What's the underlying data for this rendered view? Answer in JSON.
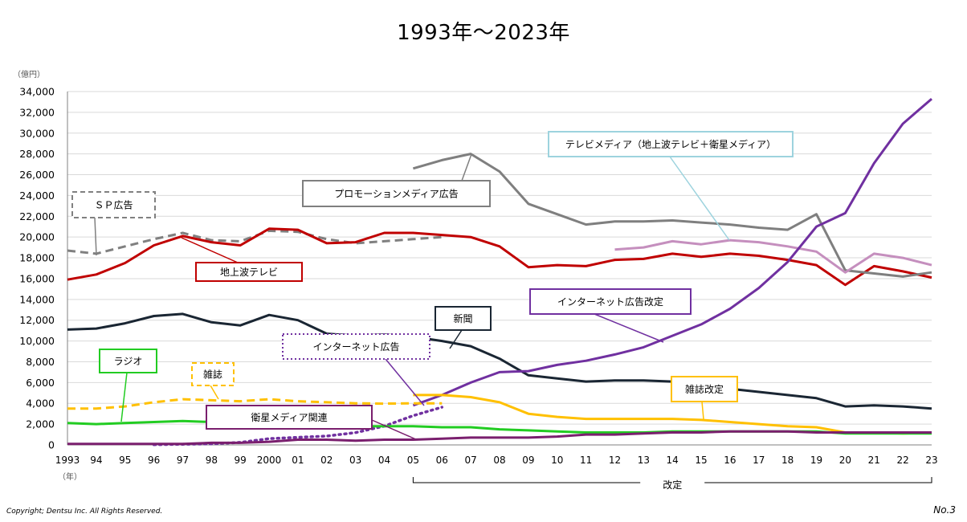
{
  "title": "1993年〜2023年",
  "footer": {
    "copyright": "Copyright; Dentsu Inc. All Rights Reserved.",
    "page_no": "No.3"
  },
  "chart_data": {
    "type": "line",
    "y_unit": "（億円）",
    "x_unit": "（年）",
    "ylim": [
      0,
      34000
    ],
    "y_ticks": [
      "0",
      "2,000",
      "4,000",
      "6,000",
      "8,000",
      "10,000",
      "12,000",
      "14,000",
      "16,000",
      "18,000",
      "20,000",
      "22,000",
      "24,000",
      "26,000",
      "28,000",
      "30,000",
      "32,000",
      "34,000"
    ],
    "y_tick_values": [
      0,
      2000,
      4000,
      6000,
      8000,
      10000,
      12000,
      14000,
      16000,
      18000,
      20000,
      22000,
      24000,
      26000,
      28000,
      30000,
      32000,
      34000
    ],
    "x_tick_labels": [
      "1993",
      "94",
      "95",
      "96",
      "97",
      "98",
      "99",
      "2000",
      "01",
      "02",
      "03",
      "04",
      "05",
      "06",
      "07",
      "08",
      "09",
      "10",
      "11",
      "12",
      "13",
      "14",
      "15",
      "16",
      "17",
      "18",
      "19",
      "20",
      "21",
      "22",
      "23"
    ],
    "x_years": [
      1993,
      1994,
      1995,
      1996,
      1997,
      1998,
      1999,
      2000,
      2001,
      2002,
      2003,
      2004,
      2005,
      2006,
      2007,
      2008,
      2009,
      2010,
      2011,
      2012,
      2013,
      2014,
      2015,
      2016,
      2017,
      2018,
      2019,
      2020,
      2021,
      2022,
      2023
    ],
    "bracket_label": "改定",
    "bracket_range": [
      2005,
      2023
    ],
    "series": [
      {
        "name": "ＳＰ広告",
        "color": "#808080",
        "dash": "dash",
        "width": 3,
        "x": [
          1993,
          1994,
          1995,
          1996,
          1997,
          1998,
          1999,
          2000,
          2001,
          2002,
          2003,
          2004,
          2005,
          2006
        ],
        "y": [
          18700,
          18400,
          19100,
          19800,
          20400,
          19700,
          19600,
          20600,
          20500,
          19800,
          19400,
          19600,
          19800,
          20000
        ]
      },
      {
        "name": "地上波テレビ",
        "color": "#c00000",
        "dash": "solid",
        "width": 3,
        "x": [
          1993,
          1994,
          1995,
          1996,
          1997,
          1998,
          1999,
          2000,
          2001,
          2002,
          2003,
          2004,
          2005,
          2006,
          2007,
          2008,
          2009,
          2010,
          2011,
          2012,
          2013,
          2014,
          2015,
          2016,
          2017,
          2018,
          2019,
          2020,
          2021,
          2022,
          2023
        ],
        "y": [
          15900,
          16400,
          17500,
          19200,
          20100,
          19500,
          19200,
          20800,
          20700,
          19400,
          19500,
          20400,
          20400,
          20200,
          20000,
          19100,
          17100,
          17300,
          17200,
          17800,
          17900,
          18400,
          18100,
          18400,
          18200,
          17800,
          17300,
          15400,
          17200,
          16700,
          16100
        ]
      },
      {
        "name": "プロモーションメディア広告",
        "color": "#7f7f7f",
        "dash": "solid",
        "width": 3,
        "x": [
          2005,
          2006,
          2007,
          2008,
          2009,
          2010,
          2011,
          2012,
          2013,
          2014,
          2015,
          2016,
          2017,
          2018,
          2019,
          2020,
          2021,
          2022,
          2023
        ],
        "y": [
          26600,
          27400,
          28000,
          26300,
          23200,
          22200,
          21200,
          21500,
          21500,
          21600,
          21400,
          21200,
          20900,
          20700,
          22200,
          16800,
          16500,
          16200,
          16600
        ]
      },
      {
        "name": "テレビメディア（地上波テレビ＋衛星メディア）",
        "color": "#c58fbe",
        "dash": "solid",
        "width": 3,
        "x": [
          2012,
          2013,
          2014,
          2015,
          2016,
          2017,
          2018,
          2019,
          2020,
          2021,
          2022,
          2023
        ],
        "y": [
          18800,
          19000,
          19600,
          19300,
          19700,
          19500,
          19100,
          18600,
          16600,
          18400,
          18000,
          17300
        ]
      },
      {
        "name": "新聞",
        "color": "#1a2633",
        "dash": "solid",
        "width": 3,
        "x": [
          1993,
          1994,
          1995,
          1996,
          1997,
          1998,
          1999,
          2000,
          2001,
          2002,
          2003,
          2004,
          2005,
          2006,
          2007,
          2008,
          2009,
          2010,
          2011,
          2012,
          2013,
          2014,
          2015,
          2016,
          2017,
          2018,
          2019,
          2020,
          2021,
          2022,
          2023
        ],
        "y": [
          11100,
          11200,
          11700,
          12400,
          12600,
          11800,
          11500,
          12500,
          12000,
          10700,
          10500,
          10600,
          10400,
          10000,
          9500,
          8300,
          6700,
          6400,
          6100,
          6200,
          6200,
          6100,
          5700,
          5400,
          5100,
          4800,
          4500,
          3700,
          3800,
          3700,
          3500
        ]
      },
      {
        "name": "インターネット広告改定",
        "color": "#7030a0",
        "dash": "solid",
        "width": 3,
        "x": [
          2005,
          2006,
          2007,
          2008,
          2009,
          2010,
          2011,
          2012,
          2013,
          2014,
          2015,
          2016,
          2017,
          2018,
          2019,
          2020,
          2021,
          2022,
          2023
        ],
        "y": [
          3800,
          4800,
          6000,
          7000,
          7100,
          7700,
          8100,
          8700,
          9400,
          10500,
          11600,
          13100,
          15100,
          17600,
          21000,
          22300,
          27100,
          30900,
          33300
        ]
      },
      {
        "name": "インターネット広告",
        "color": "#7030a0",
        "dash": "dot",
        "width": 3.5,
        "x": [
          1996,
          1997,
          1998,
          1999,
          2000,
          2001,
          2002,
          2003,
          2004,
          2005,
          2006
        ],
        "y": [
          20,
          60,
          110,
          240,
          600,
          730,
          850,
          1180,
          1810,
          2810,
          3630
        ]
      },
      {
        "name": "雑誌",
        "color": "#ffc000",
        "dash": "dash",
        "width": 3,
        "x": [
          1993,
          1994,
          1995,
          1996,
          1997,
          1998,
          1999,
          2000,
          2001,
          2002,
          2003,
          2004,
          2005,
          2006
        ],
        "y": [
          3500,
          3500,
          3700,
          4100,
          4400,
          4300,
          4200,
          4400,
          4200,
          4100,
          4000,
          3970,
          4000,
          4000
        ]
      },
      {
        "name": "雑誌改定",
        "color": "#ffc000",
        "dash": "solid",
        "width": 3,
        "x": [
          2005,
          2006,
          2007,
          2008,
          2009,
          2010,
          2011,
          2012,
          2013,
          2014,
          2015,
          2016,
          2017,
          2018,
          2019,
          2020,
          2021,
          2022,
          2023
        ],
        "y": [
          4800,
          4800,
          4600,
          4100,
          3000,
          2700,
          2500,
          2500,
          2500,
          2500,
          2400,
          2200,
          2000,
          1800,
          1700,
          1200,
          1200,
          1100,
          1200
        ]
      },
      {
        "name": "ラジオ",
        "color": "#22cc22",
        "dash": "solid",
        "width": 3,
        "x": [
          1993,
          1994,
          1995,
          1996,
          1997,
          1998,
          1999,
          2000,
          2001,
          2002,
          2003,
          2004,
          2005,
          2006,
          2007,
          2008,
          2009,
          2010,
          2011,
          2012,
          2013,
          2014,
          2015,
          2016,
          2017,
          2018,
          2019,
          2020,
          2021,
          2022,
          2023
        ],
        "y": [
          2100,
          2000,
          2100,
          2200,
          2300,
          2200,
          2100,
          2100,
          2000,
          2000,
          1800,
          1800,
          1800,
          1700,
          1700,
          1500,
          1400,
          1300,
          1200,
          1200,
          1200,
          1300,
          1300,
          1300,
          1300,
          1300,
          1300,
          1100,
          1100,
          1100,
          1100
        ]
      },
      {
        "name": "衛星メディア関連",
        "color": "#7a1f6e",
        "dash": "solid",
        "width": 3,
        "x": [
          1993,
          1994,
          1995,
          1996,
          1997,
          1998,
          1999,
          2000,
          2001,
          2002,
          2003,
          2004,
          2005,
          2006,
          2007,
          2008,
          2009,
          2010,
          2011,
          2012,
          2013,
          2014,
          2015,
          2016,
          2017,
          2018,
          2019,
          2020,
          2021,
          2022,
          2023
        ],
        "y": [
          100,
          100,
          100,
          100,
          100,
          200,
          200,
          300,
          500,
          500,
          400,
          500,
          500,
          600,
          700,
          700,
          700,
          800,
          1000,
          1000,
          1100,
          1200,
          1200,
          1300,
          1300,
          1300,
          1200,
          1200,
          1200,
          1200,
          1200
        ]
      }
    ],
    "annotations": [
      {
        "text": "ＳＰ広告",
        "border_color": "#808080",
        "border_style": "dashed",
        "text_color": "#000000"
      },
      {
        "text": "地上波テレビ",
        "border_color": "#c00000",
        "border_style": "solid",
        "text_color": "#000000"
      },
      {
        "text": "プロモーションメディア広告",
        "border_color": "#7f7f7f",
        "border_style": "solid",
        "text_color": "#000000"
      },
      {
        "text": "テレビメディア（地上波テレビ＋衛星メディア）",
        "border_color": "#9dd3de",
        "border_style": "solid",
        "text_color": "#000000"
      },
      {
        "text": "インターネット広告改定",
        "border_color": "#7030a0",
        "border_style": "solid",
        "text_color": "#000000"
      },
      {
        "text": "新聞",
        "border_color": "#1a2633",
        "border_style": "solid",
        "text_color": "#000000"
      },
      {
        "text": "インターネット広告",
        "border_color": "#7030a0",
        "border_style": "dotted",
        "text_color": "#000000"
      },
      {
        "text": "ラジオ",
        "border_color": "#22cc22",
        "border_style": "solid",
        "text_color": "#000000"
      },
      {
        "text": "雑誌",
        "border_color": "#ffc000",
        "border_style": "dashed",
        "text_color": "#000000"
      },
      {
        "text": "雑誌改定",
        "border_color": "#ffc000",
        "border_style": "solid",
        "text_color": "#000000"
      },
      {
        "text": "衛星メディア関連",
        "border_color": "#7a1f6e",
        "border_style": "solid",
        "text_color": "#000000"
      }
    ],
    "grid": true,
    "legend": "none"
  }
}
